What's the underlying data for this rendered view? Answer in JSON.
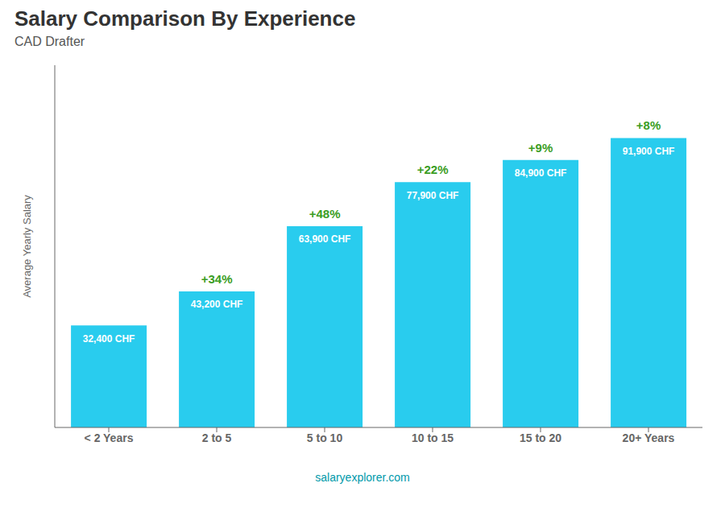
{
  "chart_data": {
    "type": "bar",
    "title": "Salary Comparison By Experience",
    "subtitle": "CAD Drafter",
    "ylabel": "Average Yearly Salary",
    "categories": [
      "< 2 Years",
      "2 to 5",
      "5 to 10",
      "10 to 15",
      "15 to 20",
      "20+ Years"
    ],
    "values": [
      32400,
      43200,
      63900,
      77900,
      84900,
      91900
    ],
    "value_labels": [
      "32,400 CHF",
      "43,200 CHF",
      "63,900 CHF",
      "77,900 CHF",
      "84,900 CHF",
      "91,900 CHF"
    ],
    "data_labels": true,
    "annotations": [
      "+34%",
      "+48%",
      "+22%",
      "+9%",
      "+8%"
    ],
    "note": "salaryexplorer.com",
    "color": "#29ccee",
    "ylim": [
      0,
      115000
    ],
    "yticks": [],
    "tick_labels": "x",
    "grid": false
  }
}
